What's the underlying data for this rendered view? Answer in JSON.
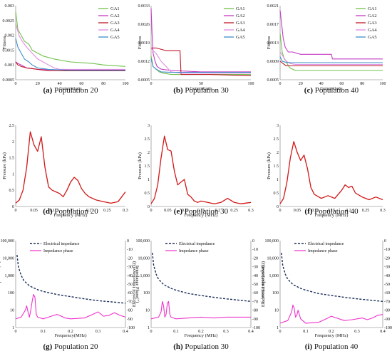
{
  "colors": {
    "GA1": "#73c04c",
    "GA2": "#c23cc2",
    "GA3": "#c0192a",
    "GA4": "#e08ce0",
    "GA5": "#3f8fc8",
    "pressure": "#d11717",
    "electrical": "#1a2f5a",
    "phase": "#ee33cc"
  },
  "chart_data": [
    {
      "type": "line",
      "caption_letter": "(a)",
      "caption_text": " Population 20",
      "xlabel": "Generations",
      "ylabel": "Fitness",
      "xlim": [
        0,
        100
      ],
      "ylim": [
        0.0005,
        0.003
      ],
      "xticks": [
        "0",
        "20",
        "40",
        "60",
        "80",
        "100"
      ],
      "yticks": [
        "0.0005",
        "0.001",
        "0.0015",
        "0.002",
        "0.0025",
        "0.003"
      ],
      "series": [
        {
          "name": "GA1",
          "color": "GA1",
          "x": [
            0,
            2,
            5,
            8,
            12,
            15,
            20,
            25,
            35,
            50,
            70,
            80,
            100
          ],
          "y": [
            0.0028,
            0.0022,
            0.002,
            0.0018,
            0.0017,
            0.0015,
            0.0014,
            0.0013,
            0.0012,
            0.0011,
            0.00105,
            0.001,
            0.00095
          ]
        },
        {
          "name": "GA2",
          "color": "GA2",
          "x": [
            0,
            2,
            5,
            10,
            15,
            20,
            30,
            50,
            100
          ],
          "y": [
            0.0011,
            0.00105,
            0.001,
            0.0009,
            0.00088,
            0.00085,
            0.00084,
            0.00084,
            0.00084
          ]
        },
        {
          "name": "GA3",
          "color": "GA3",
          "x": [
            0,
            2,
            5,
            10,
            20,
            30,
            50,
            100
          ],
          "y": [
            0.0011,
            0.001,
            0.00095,
            0.0009,
            0.00085,
            0.0008,
            0.0008,
            0.0008
          ]
        },
        {
          "name": "GA4",
          "color": "GA4",
          "x": [
            0,
            3,
            6,
            10,
            15,
            20,
            25,
            30,
            35,
            40,
            100
          ],
          "y": [
            0.0024,
            0.002,
            0.0018,
            0.0016,
            0.0014,
            0.0012,
            0.0011,
            0.001,
            0.0009,
            0.00085,
            0.00085
          ]
        },
        {
          "name": "GA5",
          "color": "GA5",
          "x": [
            0,
            2,
            5,
            8,
            12,
            15,
            20,
            30,
            50,
            100
          ],
          "y": [
            0.0019,
            0.0016,
            0.0014,
            0.0012,
            0.0011,
            0.001,
            0.0009,
            0.00085,
            0.00082,
            0.00082
          ]
        }
      ]
    },
    {
      "type": "line",
      "caption_letter": "(b)",
      "caption_text": " Population 30",
      "xlabel": "Generations",
      "ylabel": "Fitness",
      "xlim": [
        0,
        100
      ],
      "ylim": [
        0.0005,
        0.0033
      ],
      "xticks": [
        "0",
        "50",
        "100"
      ],
      "yticks": [
        "0.0005",
        "0.0012",
        "0.0019",
        "0.0026",
        "0.0033"
      ],
      "series": [
        {
          "name": "GA1",
          "color": "GA1",
          "x": [
            0,
            2,
            5,
            8,
            12,
            20,
            50,
            100
          ],
          "y": [
            0.0014,
            0.001,
            0.0009,
            0.0008,
            0.00075,
            0.0007,
            0.0007,
            0.0007
          ]
        },
        {
          "name": "GA2",
          "color": "GA2",
          "x": [
            0,
            1,
            2,
            4,
            6,
            10,
            20,
            50,
            100
          ],
          "y": [
            0.0032,
            0.0022,
            0.0015,
            0.0012,
            0.001,
            0.0009,
            0.00085,
            0.0008,
            0.0008
          ]
        },
        {
          "name": "GA3",
          "color": "GA3",
          "x": [
            0,
            5,
            15,
            20,
            25,
            29,
            30,
            40,
            60,
            100
          ],
          "y": [
            0.0017,
            0.0017,
            0.0016,
            0.0016,
            0.0016,
            0.0016,
            0.0007,
            0.0007,
            0.0007,
            0.00065
          ]
        },
        {
          "name": "GA4",
          "color": "GA4",
          "x": [
            0,
            2,
            5,
            10,
            20,
            30,
            100
          ],
          "y": [
            0.0017,
            0.0016,
            0.0015,
            0.0012,
            0.0008,
            0.00075,
            0.00075
          ]
        },
        {
          "name": "GA5",
          "color": "GA5",
          "x": [
            0,
            2,
            5,
            10,
            20,
            30,
            100
          ],
          "y": [
            0.0013,
            0.001,
            0.0009,
            0.0008,
            0.00078,
            0.00078,
            0.00078
          ]
        }
      ]
    },
    {
      "type": "line",
      "caption_letter": "(c)",
      "caption_text": " Population 40",
      "xlabel": "Generations",
      "ylabel": "Fitness",
      "xlim": [
        0,
        100
      ],
      "ylim": [
        0.0005,
        0.0021
      ],
      "xticks": [
        "0",
        "20",
        "40",
        "60",
        "80",
        "100"
      ],
      "yticks": [
        "0.0005",
        "0.0009",
        "0.0013",
        "0.0017",
        "0.0021"
      ],
      "series": [
        {
          "name": "GA1",
          "color": "GA1",
          "x": [
            0,
            2,
            4,
            6,
            8,
            10,
            15,
            20,
            100
          ],
          "y": [
            0.0015,
            0.0011,
            0.00095,
            0.0009,
            0.0008,
            0.00075,
            0.0007,
            0.0007,
            0.0007
          ]
        },
        {
          "name": "GA2",
          "color": "GA2",
          "x": [
            0,
            1,
            2,
            3,
            5,
            8,
            12,
            20,
            30,
            50,
            51,
            80,
            100
          ],
          "y": [
            0.002,
            0.0018,
            0.0016,
            0.0014,
            0.0012,
            0.0011,
            0.0011,
            0.00105,
            0.00105,
            0.00105,
            0.00095,
            0.00095,
            0.00095
          ]
        },
        {
          "name": "GA3",
          "color": "GA3",
          "x": [
            0,
            3,
            6,
            10,
            20,
            100
          ],
          "y": [
            0.0009,
            0.00085,
            0.0008,
            0.0008,
            0.0008,
            0.0008
          ]
        },
        {
          "name": "GA4",
          "color": "GA4",
          "x": [
            0,
            3,
            6,
            10,
            15,
            20,
            30,
            100
          ],
          "y": [
            0.0011,
            0.001,
            0.0009,
            0.00085,
            0.00083,
            0.00083,
            0.00083,
            0.00083
          ]
        },
        {
          "name": "GA5",
          "color": "GA5",
          "x": [
            0,
            2,
            5,
            10,
            20,
            100
          ],
          "y": [
            0.001,
            0.0009,
            0.00088,
            0.00087,
            0.00087,
            0.00087
          ]
        }
      ]
    },
    {
      "type": "line",
      "caption_letter": "(d)",
      "caption_text": " Population 20",
      "xlabel": "Frequency (MHz)",
      "ylabel": "Pressure (kPa)",
      "xlim": [
        0,
        0.3
      ],
      "ylim": [
        0,
        2.5
      ],
      "xticks": [
        "0",
        "0.05",
        "0.1",
        "0.15",
        "0.2",
        "0.25",
        "0.3"
      ],
      "yticks": [
        "0",
        "0.5",
        "1",
        "1.5",
        "2",
        "2.5"
      ],
      "series": [
        {
          "color": "pressure",
          "x": [
            0,
            0.01,
            0.02,
            0.03,
            0.04,
            0.05,
            0.06,
            0.07,
            0.08,
            0.09,
            0.1,
            0.11,
            0.12,
            0.13,
            0.14,
            0.15,
            0.16,
            0.17,
            0.18,
            0.19,
            0.2,
            0.22,
            0.24,
            0.26,
            0.28,
            0.29,
            0.3
          ],
          "y": [
            0.1,
            0.2,
            0.5,
            1.2,
            2.3,
            1.9,
            1.7,
            2.15,
            1.2,
            0.6,
            0.5,
            0.45,
            0.4,
            0.3,
            0.5,
            0.75,
            0.9,
            0.8,
            0.55,
            0.4,
            0.3,
            0.2,
            0.15,
            0.1,
            0.15,
            0.3,
            0.45
          ]
        }
      ]
    },
    {
      "type": "line",
      "caption_letter": "(e)",
      "caption_text": " Population 30",
      "xlabel": "Frequency (MHz)",
      "ylabel": "Pressure (kPa)",
      "xlim": [
        0,
        0.3
      ],
      "ylim": [
        0,
        3
      ],
      "xticks": [
        "0",
        "0.05",
        "0.1",
        "0.15",
        "0.2",
        "0.25",
        "0.3"
      ],
      "yticks": [
        "0",
        "0.5",
        "1",
        "1.5",
        "2",
        "2.5",
        "3"
      ],
      "series": [
        {
          "color": "pressure",
          "x": [
            0,
            0.01,
            0.02,
            0.03,
            0.04,
            0.05,
            0.06,
            0.07,
            0.08,
            0.09,
            0.1,
            0.11,
            0.12,
            0.13,
            0.14,
            0.15,
            0.17,
            0.19,
            0.21,
            0.23,
            0.25,
            0.27,
            0.3
          ],
          "y": [
            0.1,
            0.3,
            0.8,
            1.8,
            2.6,
            2.1,
            2.05,
            1.3,
            0.8,
            0.9,
            1.0,
            0.45,
            0.35,
            0.2,
            0.15,
            0.2,
            0.15,
            0.1,
            0.15,
            0.3,
            0.15,
            0.1,
            0.15
          ]
        }
      ]
    },
    {
      "type": "line",
      "caption_letter": "(f)",
      "caption_text": " Population 40",
      "xlabel": "Frequency (MHz)",
      "ylabel": "Pressure (kPa)",
      "xlim": [
        0,
        0.3
      ],
      "ylim": [
        0,
        3
      ],
      "xticks": [
        "0",
        "0.05",
        "0.1",
        "0.15",
        "0.2",
        "0.25",
        "0.3"
      ],
      "yticks": [
        "0",
        "0.5",
        "1",
        "1.5",
        "2",
        "2.5",
        "3"
      ],
      "series": [
        {
          "color": "pressure",
          "x": [
            0,
            0.01,
            0.02,
            0.03,
            0.04,
            0.05,
            0.06,
            0.07,
            0.08,
            0.09,
            0.1,
            0.12,
            0.14,
            0.16,
            0.18,
            0.19,
            0.2,
            0.21,
            0.22,
            0.24,
            0.26,
            0.28,
            0.3
          ],
          "y": [
            0.1,
            0.3,
            0.9,
            1.8,
            2.4,
            2.0,
            1.7,
            1.9,
            1.4,
            0.7,
            0.45,
            0.3,
            0.4,
            0.3,
            0.6,
            0.8,
            0.7,
            0.75,
            0.5,
            0.35,
            0.25,
            0.35,
            0.25
          ]
        }
      ]
    },
    {
      "type": "line",
      "caption_letter": "(g)",
      "caption_text": " Population 20",
      "xlabel": "Frequency(MHz)",
      "ylabel": "Electrical Impedance(Ω)",
      "y2label": "Impedance Phase(°)",
      "xlim": [
        0,
        0.4
      ],
      "ylim_log": [
        1,
        100000
      ],
      "y2lim": [
        -100,
        0
      ],
      "xticks": [
        "0",
        "0.1",
        "0.2",
        "0.3",
        "0.4"
      ],
      "yticks": [
        "1",
        "10",
        "100",
        "1,000",
        "10,000",
        "100,000"
      ],
      "y2ticks": [
        "0",
        "-10",
        "-20",
        "-30",
        "-40",
        "-50",
        "-60",
        "-70",
        "-80",
        "-90",
        "-100"
      ],
      "legend": [
        "Electrical impedance",
        "Impedance phase"
      ],
      "impedance": {
        "x": [
          0.005,
          0.01,
          0.02,
          0.03,
          0.05,
          0.08,
          0.1,
          0.15,
          0.2,
          0.25,
          0.3,
          0.35,
          0.4
        ],
        "y": [
          15000,
          3000,
          1000,
          500,
          250,
          150,
          120,
          80,
          60,
          45,
          35,
          30,
          25
        ]
      },
      "phase": {
        "x": [
          0,
          0.02,
          0.035,
          0.04,
          0.045,
          0.05,
          0.055,
          0.06,
          0.065,
          0.07,
          0.075,
          0.08,
          0.09,
          0.1,
          0.12,
          0.14,
          0.15,
          0.16,
          0.18,
          0.2,
          0.25,
          0.28,
          0.3,
          0.32,
          0.34,
          0.36,
          0.38,
          0.4
        ],
        "y": [
          -90,
          -88,
          -80,
          -75,
          -82,
          -88,
          -80,
          -70,
          -62,
          -65,
          -85,
          -88,
          -89,
          -90,
          -88,
          -86,
          -85,
          -86,
          -89,
          -90,
          -89,
          -85,
          -82,
          -87,
          -86,
          -83,
          -86,
          -88
        ]
      }
    },
    {
      "type": "line",
      "caption_letter": "(h)",
      "caption_text": " Population 30",
      "xlabel": "Frequency (MHz)",
      "ylabel": "Electrical Impedance(Ω)",
      "y2label": "Impedance Phase(°)",
      "xlim": [
        0,
        0.4
      ],
      "ylim_log": [
        1,
        100000
      ],
      "y2lim": [
        -100,
        0
      ],
      "xticks": [
        "0",
        "0.1",
        "0.2",
        "0.3",
        "0.4"
      ],
      "yticks": [
        "1",
        "10",
        "100",
        "1,000",
        "10,000",
        "100,000"
      ],
      "y2ticks": [
        "0",
        "-10",
        "-20",
        "-30",
        "-40",
        "-50",
        "-60",
        "-70",
        "-80",
        "-90",
        "-100"
      ],
      "legend": [
        "Electrical impedance",
        "Impedance phase"
      ],
      "impedance": {
        "x": [
          0.005,
          0.01,
          0.02,
          0.03,
          0.05,
          0.08,
          0.1,
          0.15,
          0.2,
          0.25,
          0.3,
          0.35,
          0.4
        ],
        "y": [
          20000,
          4000,
          1200,
          600,
          300,
          180,
          140,
          90,
          70,
          55,
          45,
          38,
          32
        ]
      },
      "phase": {
        "x": [
          0,
          0.03,
          0.04,
          0.045,
          0.05,
          0.055,
          0.06,
          0.065,
          0.07,
          0.075,
          0.08,
          0.09,
          0.1,
          0.15,
          0.2,
          0.25,
          0.3,
          0.35,
          0.4
        ],
        "y": [
          -90,
          -88,
          -82,
          -70,
          -75,
          -88,
          -85,
          -72,
          -70,
          -85,
          -88,
          -89,
          -90,
          -89,
          -88,
          -89,
          -88,
          -88,
          -88
        ]
      }
    },
    {
      "type": "line",
      "caption_letter": "(i)",
      "caption_text": " Population 40",
      "xlabel": "Frequency (MHz)",
      "ylabel": "Electrical Impedance(Ω)",
      "y2label": "Impedance Phase(°)",
      "xlim": [
        0,
        0.4
      ],
      "ylim_log": [
        1,
        100000
      ],
      "y2lim": [
        -100,
        0
      ],
      "xticks": [
        "0",
        "0.1",
        "0.2",
        "0.3",
        "0.4"
      ],
      "yticks": [
        "1",
        "10",
        "100",
        "1,000",
        "10,000",
        "100,000"
      ],
      "y2ticks": [
        "0",
        "-10",
        "-20",
        "-30",
        "-40",
        "-50",
        "-60",
        "-70",
        "-80",
        "-90",
        "-100"
      ],
      "legend": [
        "Electrical impedance",
        "Impedance phase"
      ],
      "impedance": {
        "x": [
          0.005,
          0.01,
          0.02,
          0.03,
          0.05,
          0.08,
          0.1,
          0.15,
          0.2,
          0.25,
          0.3,
          0.35,
          0.4
        ],
        "y": [
          20000,
          4000,
          1200,
          600,
          300,
          180,
          140,
          90,
          70,
          55,
          45,
          38,
          32
        ]
      },
      "phase": {
        "x": [
          0,
          0.03,
          0.045,
          0.05,
          0.055,
          0.06,
          0.065,
          0.07,
          0.08,
          0.1,
          0.15,
          0.18,
          0.2,
          0.22,
          0.25,
          0.28,
          0.3,
          0.32,
          0.34,
          0.36,
          0.38,
          0.4
        ],
        "y": [
          -95,
          -92,
          -82,
          -74,
          -78,
          -88,
          -86,
          -80,
          -90,
          -95,
          -94,
          -90,
          -87,
          -89,
          -92,
          -91,
          -90,
          -89,
          -91,
          -89,
          -86,
          -85
        ]
      }
    }
  ]
}
